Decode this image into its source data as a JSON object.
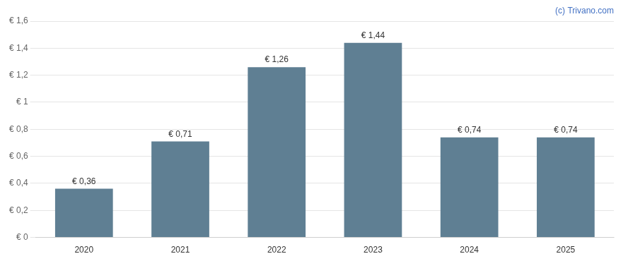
{
  "chart_data": {
    "type": "bar",
    "categories": [
      "2020",
      "2021",
      "2022",
      "2023",
      "2024",
      "2025"
    ],
    "values": [
      0.36,
      0.71,
      1.26,
      1.44,
      0.74,
      0.74
    ],
    "value_labels": [
      "€ 0,36",
      "€ 0,71",
      "€ 1,26",
      "€ 1,44",
      "€ 0,74",
      "€ 0,74"
    ],
    "data_labels": true,
    "color": "#5f7f93",
    "ylim": [
      0,
      1.6
    ],
    "yticks": [
      {
        "value": 0,
        "label": "€ 0"
      },
      {
        "value": 0.2,
        "label": "€ 0,2"
      },
      {
        "value": 0.4,
        "label": "€ 0,4"
      },
      {
        "value": 0.6,
        "label": "€ 0,6"
      },
      {
        "value": 0.8,
        "label": "€ 0,8"
      },
      {
        "value": 1.0,
        "label": "€ 1"
      },
      {
        "value": 1.2,
        "label": "€ 1,2"
      },
      {
        "value": 1.4,
        "label": "€ 1,4"
      },
      {
        "value": 1.6,
        "label": "€ 1,6"
      }
    ],
    "grid": true,
    "annotations": [
      "(c) Trivano.com"
    ]
  }
}
